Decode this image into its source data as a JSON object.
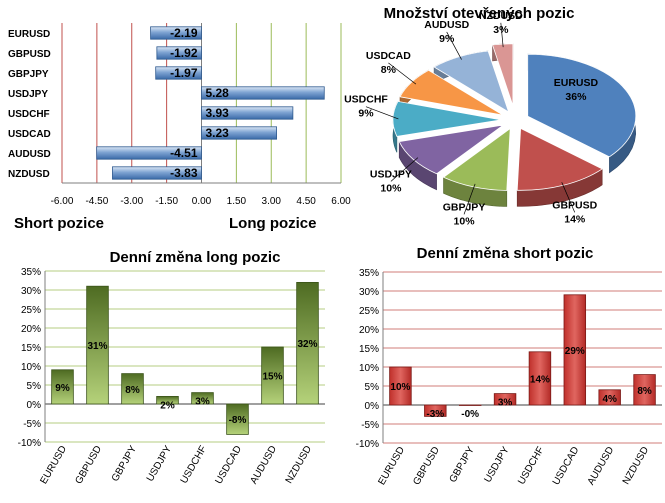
{
  "chart_data": [
    {
      "type": "bar",
      "orientation": "horizontal",
      "categories": [
        "EURUSD",
        "GBPUSD",
        "GBPJPY",
        "USDJPY",
        "USDCHF",
        "USDCAD",
        "AUDUSD",
        "NZDUSD"
      ],
      "values": [
        -2.19,
        -1.92,
        -1.97,
        5.28,
        3.93,
        3.23,
        -4.51,
        -3.83
      ],
      "value_labels": [
        "-2.19",
        "-1.92",
        "-1.97",
        "5.28",
        "3.93",
        "3.23",
        "-4.51",
        "-3.83"
      ],
      "xlim": [
        -6,
        6
      ],
      "x_ticks": [
        "-6.00",
        "-4.50",
        "-3.00",
        "-1.50",
        "0.00",
        "1.50",
        "3.00",
        "4.50",
        "6.00"
      ],
      "left_label": "Short pozice",
      "right_label": "Long pozice",
      "colors": {
        "bar": "#4f81bd",
        "short_line": "#c0504d",
        "long_line": "#9bbb59"
      }
    },
    {
      "type": "pie",
      "title": "Množství otevřených pozic",
      "labels": [
        "EURUSD",
        "GBPUSD",
        "GBPJPY",
        "USDJPY",
        "USDCHF",
        "USDCAD",
        "AUDUSD",
        "NZDUSD"
      ],
      "values": [
        36,
        14,
        10,
        10,
        9,
        8,
        9,
        3
      ],
      "value_labels": [
        "36%",
        "14%",
        "10%",
        "10%",
        "9%",
        "8%",
        "9%",
        "3%"
      ],
      "colors": [
        "#4f81bd",
        "#c0504d",
        "#9bbb59",
        "#8064a2",
        "#4bacc6",
        "#f79646",
        "#95b3d7",
        "#da9694"
      ]
    },
    {
      "type": "bar",
      "title": "Denní změna long pozic",
      "categories": [
        "EURUSD",
        "GBPUSD",
        "GBPJPY",
        "USDJPY",
        "USDCHF",
        "USDCAD",
        "AUDUSD",
        "NZDUSD"
      ],
      "values": [
        9,
        31,
        8,
        2,
        3,
        -8,
        15,
        32
      ],
      "value_labels": [
        "9%",
        "31%",
        "8%",
        "2%",
        "3%",
        "-8%",
        "15%",
        "32%"
      ],
      "ylim": [
        -10,
        35
      ],
      "y_ticks": [
        "-10%",
        "-5%",
        "0%",
        "5%",
        "10%",
        "15%",
        "20%",
        "25%",
        "30%",
        "35%"
      ],
      "colors": {
        "bar": "#77933c",
        "grid": "#9bbb59"
      }
    },
    {
      "type": "bar",
      "title": "Denní změna short pozic",
      "categories": [
        "EURUSD",
        "GBPUSD",
        "GBPJPY",
        "USDJPY",
        "USDCHF",
        "USDCAD",
        "AUDUSD",
        "NZDUSD"
      ],
      "values": [
        10,
        -3,
        0,
        3,
        14,
        29,
        4,
        8
      ],
      "value_labels": [
        "10%",
        "-3%",
        "-0%",
        "3%",
        "14%",
        "29%",
        "4%",
        "8%"
      ],
      "ylim": [
        -10,
        35
      ],
      "y_ticks": [
        "-10%",
        "-5%",
        "0%",
        "5%",
        "10%",
        "15%",
        "20%",
        "25%",
        "30%",
        "35%"
      ],
      "colors": {
        "bar": "#c0504d",
        "grid": "#c0504d"
      }
    }
  ]
}
